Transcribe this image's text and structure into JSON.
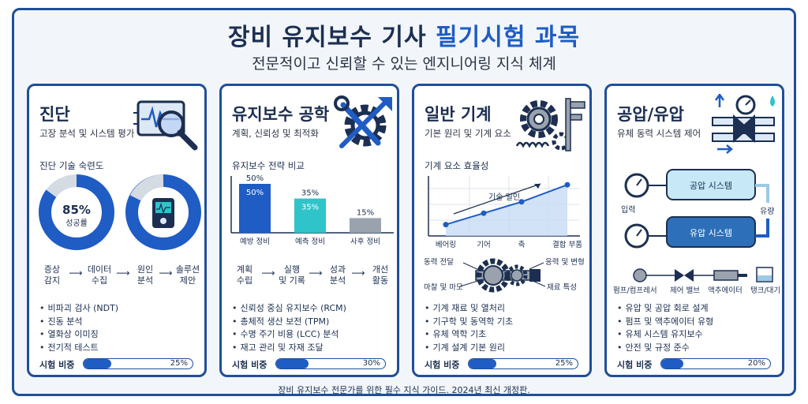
{
  "header": {
    "title_main": "장비 유지보수 기사 ",
    "title_highlight": "필기시험 과목",
    "subtitle": "전문적이고 신뢰할 수 있는 엔지니어링 지식 체계"
  },
  "colors": {
    "primary": "#1f5cc4",
    "border": "#1f4f99",
    "teal": "#2ec4c9",
    "gray": "#9aa3ad"
  },
  "cards": [
    {
      "title": "진단",
      "subtitle": "고장 분석 및 시스템 평가",
      "icon": "magnifier-waveform-icon",
      "section_label": "진단 기술 숙련도",
      "gauge": {
        "value": "85%",
        "label": "성공률",
        "fraction": 0.85
      },
      "flow": [
        "증상\n감지",
        "데이터\n수집",
        "원인\n분석",
        "솔루션\n제안"
      ],
      "bullets": [
        "비파괴 검사 (NDT)",
        "진동 분석",
        "열화상 이미징",
        "전기적 테스트"
      ],
      "weight_label": "시험 비중",
      "weight": "25%",
      "weight_fraction": 0.25
    },
    {
      "title": "유지보수 공학",
      "subtitle": "계획, 신뢰성 및 최적화",
      "icon": "wrench-gear-icon",
      "section_label": "유지보수 전략 비교",
      "chart_data": {
        "type": "bar",
        "categories": [
          "예방 정비",
          "예측 정비",
          "사후 정비"
        ],
        "values": [
          50,
          35,
          15
        ],
        "value_labels": [
          "50%",
          "35%",
          "15%"
        ],
        "inner_labels": [
          "50%",
          "35%",
          ""
        ],
        "colors": [
          "#1f5cc4",
          "#2ec4c9",
          "#9aa3ad"
        ]
      },
      "flow": [
        "계획\n수립",
        "실행\n및 기록",
        "성과\n분석",
        "개선\n활동"
      ],
      "bullets": [
        "신뢰성 중심 유지보수 (RCM)",
        "총체적 생산 보전 (TPM)",
        "수명 주기 비용 (LCC) 분석",
        "재고 관리 및 자재 조달"
      ],
      "weight_label": "시험 비중",
      "weight": "30%",
      "weight_fraction": 0.3
    },
    {
      "title": "일반 기계",
      "subtitle": "기본 원리 및 기계 요소",
      "icon": "gear-caliper-icon",
      "section_label": "기계 요소 효율성",
      "chart_data": {
        "type": "area",
        "categories": [
          "베어링",
          "기어",
          "축",
          "결합 부품"
        ],
        "values": [
          1,
          2,
          3,
          4.5
        ],
        "annotation": "기술 일인"
      },
      "mech_labels": [
        "동력 전달",
        "응력 및 변형",
        "마찰 및 마모",
        "재료 특성"
      ],
      "bullets": [
        "기계 재료 및 열처리",
        "기구학 및 동역학 기초",
        "유체 역학 기초",
        "기계 설계 기본 원리"
      ],
      "weight_label": "시험 비중",
      "weight": "25%",
      "weight_fraction": 0.25
    },
    {
      "title": "공압/유압",
      "subtitle": "유체 동력 시스템 제어",
      "icon": "valve-gauge-icon",
      "pneu_system": "공압 시스템",
      "hyd_system": "유압 시스템",
      "input_label": "입력",
      "output_label": "유량",
      "components": [
        "펌프/컴프레서",
        "제어 밸브",
        "액추에이터",
        "탱크/대기"
      ],
      "bullets": [
        "유압 및 공압 회로 설계",
        "펌프 및 액추에이터 유형",
        "유체 시스템 유지보수",
        "안전 및 규정 준수"
      ],
      "weight_label": "시험 비중",
      "weight": "20%",
      "weight_fraction": 0.2
    }
  ],
  "footer": "장비 유지보수 전문가를 위한 필수 지식 가이드. 2024년 최신 개정판."
}
